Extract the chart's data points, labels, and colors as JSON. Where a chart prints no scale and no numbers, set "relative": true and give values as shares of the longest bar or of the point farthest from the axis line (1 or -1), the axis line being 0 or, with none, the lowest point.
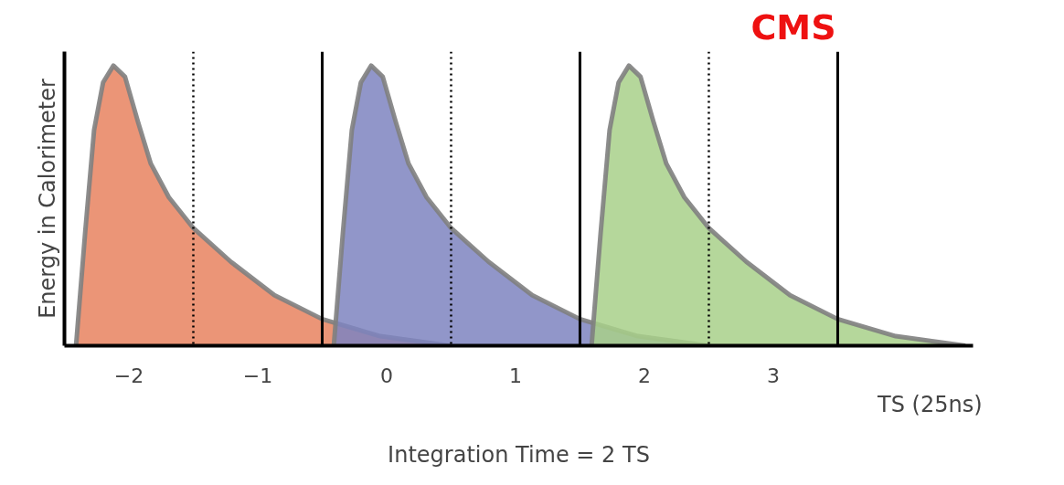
{
  "chart_data": {
    "type": "area",
    "relative": true,
    "ylabel": "Energy in Calorimeter",
    "xlabel": "TS (25ns)",
    "tick_labels": "x",
    "grid": false,
    "xlim": [
      -2.5,
      4.55
    ],
    "xticks": [
      -2,
      -1,
      0,
      1,
      2,
      3
    ],
    "series": [
      {
        "color": "#e8835f",
        "x": [
          -2.41,
          -2.34,
          -2.27,
          -2.2,
          -2.12,
          -2.03,
          -1.93,
          -1.83,
          -1.69,
          -1.5,
          -1.21,
          -0.87,
          -0.5,
          -0.05,
          0.49
        ],
        "values": [
          0,
          0.4,
          0.77,
          0.94,
          1,
          0.96,
          0.8,
          0.65,
          0.53,
          0.42,
          0.3,
          0.18,
          0.095,
          0.034,
          0
        ]
      },
      {
        "color": "#7e84c0",
        "x": [
          -0.41,
          -0.34,
          -0.27,
          -0.2,
          -0.12,
          -0.03,
          0.07,
          0.17,
          0.31,
          0.5,
          0.79,
          1.13,
          1.5,
          1.95,
          2.49
        ],
        "values": [
          0,
          0.4,
          0.77,
          0.94,
          1,
          0.96,
          0.8,
          0.65,
          0.53,
          0.42,
          0.3,
          0.18,
          0.095,
          0.034,
          0
        ]
      },
      {
        "color": "#a8d08a",
        "x": [
          1.59,
          1.66,
          1.73,
          1.8,
          1.88,
          1.97,
          2.07,
          2.17,
          2.31,
          2.5,
          2.79,
          3.13,
          3.5,
          3.95,
          4.49
        ],
        "values": [
          0,
          0.4,
          0.77,
          0.94,
          1,
          0.96,
          0.8,
          0.65,
          0.53,
          0.42,
          0.3,
          0.18,
          0.095,
          0.034,
          0
        ]
      }
    ],
    "ref_lines": [
      {
        "axis": "x",
        "value": -1.5,
        "line_style": "dotted"
      },
      {
        "axis": "x",
        "value": -0.5,
        "line_style": "solid"
      },
      {
        "axis": "x",
        "value": 0.5,
        "line_style": "dotted"
      },
      {
        "axis": "x",
        "value": 1.5,
        "line_style": "solid"
      },
      {
        "axis": "x",
        "value": 2.5,
        "line_style": "dotted"
      },
      {
        "axis": "x",
        "value": 3.5,
        "line_style": "solid"
      }
    ],
    "annotations": [
      "Integration Time = 2 TS",
      "CMS"
    ]
  }
}
